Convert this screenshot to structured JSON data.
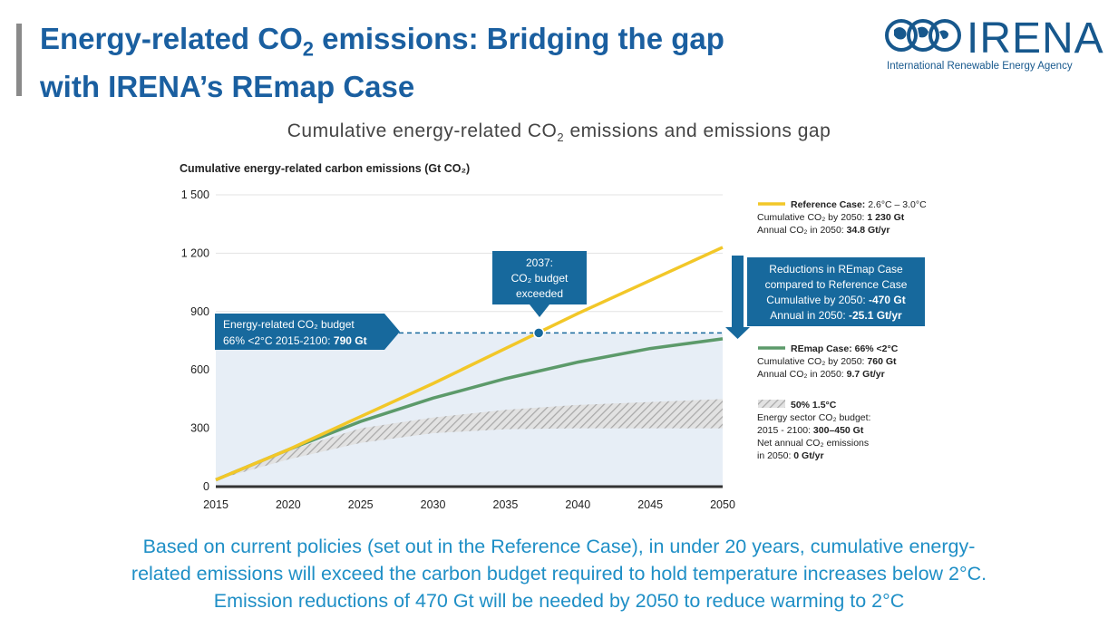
{
  "header": {
    "title_line1_a": "Energy-related CO",
    "title_line1_sub": "2",
    "title_line1_b": " emissions: Bridging the gap",
    "title_line2": "with IRENA’s REmap Case"
  },
  "logo": {
    "name": "IRENA",
    "subtitle": "International Renewable Energy Agency",
    "icon": "globe-rings-icon",
    "color": "#17588d"
  },
  "colors": {
    "reference": "#f2c728",
    "remap": "#5c9a6a",
    "callout": "#17699d",
    "band": "#e7eef6",
    "text_blue": "#1f8fc6"
  },
  "chart_data": {
    "type": "line",
    "title_a": "Cumulative energy-related CO",
    "title_sub": "2",
    "title_b": " emissions and emissions gap",
    "ylabel": "Cumulative energy-related carbon emissions (Gt CO₂)",
    "ylim": [
      0,
      1500
    ],
    "xlim": [
      2015,
      2050
    ],
    "x_ticks": [
      "2015",
      "2020",
      "2025",
      "2030",
      "2035",
      "2040",
      "2045",
      "2050"
    ],
    "y_ticks": [
      "0",
      "300",
      "600",
      "900",
      "1 200",
      "1 500"
    ],
    "series": [
      {
        "name": "Reference Case",
        "x": [
          2015,
          2020,
          2025,
          2030,
          2035,
          2040,
          2045,
          2050
        ],
        "y": [
          35,
          190,
          360,
          530,
          710,
          890,
          1060,
          1230
        ]
      },
      {
        "name": "REmap Case",
        "x": [
          2015,
          2020,
          2025,
          2030,
          2035,
          2040,
          2045,
          2050
        ],
        "y": [
          35,
          190,
          335,
          455,
          555,
          640,
          710,
          760
        ]
      }
    ],
    "band_1_5": {
      "name": "50% 1.5°C",
      "x": [
        2015,
        2020,
        2025,
        2030,
        2035,
        2040,
        2045,
        2050
      ],
      "lower": [
        35,
        140,
        225,
        275,
        295,
        300,
        300,
        300
      ],
      "upper": [
        35,
        185,
        300,
        355,
        395,
        420,
        435,
        450
      ]
    },
    "budget_line": {
      "y": 790,
      "x_start": 2015,
      "x_end": 2050
    },
    "marker": {
      "x": 2037.3,
      "y": 790
    },
    "annotations": {
      "crossing": [
        "2037:",
        "CO₂ budget",
        "exceeded"
      ],
      "budget": [
        "Energy-related CO₂ budget",
        "66% <2°C 2015-2100: ",
        "790 Gt"
      ],
      "reductions": [
        "Reductions in REmap Case",
        "compared to Reference Case",
        "Cumulative by 2050: ",
        "-470 Gt",
        "Annual in 2050: ",
        "-25.1 Gt/yr"
      ]
    },
    "legend": {
      "reference": {
        "label": "Reference Case: ",
        "range": "2.6°C – 3.0°C",
        "line2": "Cumulative CO₂ by 2050: ",
        "line2_val": "1 230 Gt",
        "line3": "Annual CO₂ in 2050: ",
        "line3_val": "34.8 Gt/yr"
      },
      "remap": {
        "label": "REmap Case: 66% <2°C",
        "line2": "Cumulative CO₂ by 2050: ",
        "line2_val": "760 Gt",
        "line3": "Annual CO₂ in 2050: ",
        "line3_val": "9.7 Gt/yr"
      },
      "band": {
        "label": "50% 1.5°C",
        "line2": "Energy sector CO₂ budget:",
        "line3": "2015 - 2100: ",
        "line3_val": "300–450 Gt",
        "line4": "Net annual CO₂ emissions",
        "line5": "in 2050: ",
        "line5_val": "0 Gt/yr"
      }
    }
  },
  "caption": {
    "line1": "Based on current policies (set out in the Reference Case), in under 20 years, cumulative energy-",
    "line2": "related emissions will exceed the carbon budget required to hold temperature increases below 2°C.",
    "line3": "Emission reductions of 470 Gt will be needed by 2050 to reduce warming to 2°C"
  }
}
